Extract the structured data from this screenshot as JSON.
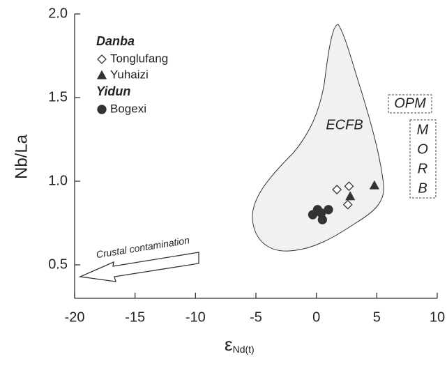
{
  "chart_data": {
    "type": "scatter",
    "x_label": "ε",
    "x_label_sub": "Nd(t)",
    "y_label": "Nb/La",
    "xlim": [
      -20,
      10
    ],
    "xticks": [
      -20,
      -15,
      -10,
      -5,
      0,
      5,
      10
    ],
    "ylim": [
      0.3,
      2.0
    ],
    "yticks": [
      {
        "value": 0.5,
        "label": "0.5"
      },
      {
        "value": 1,
        "label": "1.0"
      },
      1.5,
      {
        "value": 2,
        "label": "2.0"
      }
    ],
    "groups": [
      {
        "name": "Danba",
        "series": [
          {
            "name": "Tonglufang",
            "marker": "diamond",
            "color": "#333333",
            "filled": false,
            "x": [
              1.7,
              2.7,
              2.6
            ],
            "values": [
              0.95,
              0.97,
              0.86
            ]
          },
          {
            "name": "Yuhaizi",
            "marker": "triangle",
            "color": "#333333",
            "filled": true,
            "x": [
              2.8,
              4.8
            ],
            "values": [
              0.91,
              0.975
            ]
          }
        ]
      },
      {
        "name": "Yidun",
        "series": [
          {
            "name": "Bogexi",
            "marker": "circle",
            "color": "#333333",
            "filled": true,
            "x": [
              -0.3,
              0.1,
              1.0,
              0.5,
              0.4
            ],
            "values": [
              0.8,
              0.83,
              0.83,
              0.77,
              0.81
            ]
          }
        ]
      }
    ],
    "annotations": {
      "field": "ECFB",
      "opm": "OPM",
      "morb": [
        "M",
        "O",
        "R",
        "B"
      ],
      "arrow": "Crustal contamination"
    }
  }
}
